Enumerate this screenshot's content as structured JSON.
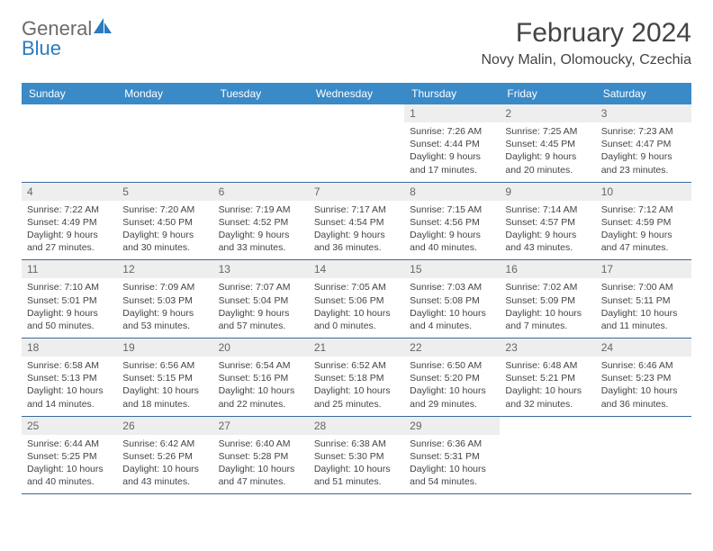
{
  "logo": {
    "word1": "General",
    "word2": "Blue"
  },
  "title": "February 2024",
  "location": "Novy Malin, Olomoucky, Czechia",
  "colors": {
    "header_bg": "#3a8ac8",
    "row_border": "#3a6a9a",
    "daynum_bg": "#eeeeee",
    "logo_gray": "#6b6b6b",
    "logo_blue": "#2b7bbf"
  },
  "weekdays": [
    "Sunday",
    "Monday",
    "Tuesday",
    "Wednesday",
    "Thursday",
    "Friday",
    "Saturday"
  ],
  "weeks": [
    [
      null,
      null,
      null,
      null,
      {
        "n": "1",
        "sr": "Sunrise: 7:26 AM",
        "ss": "Sunset: 4:44 PM",
        "dl": "Daylight: 9 hours and 17 minutes."
      },
      {
        "n": "2",
        "sr": "Sunrise: 7:25 AM",
        "ss": "Sunset: 4:45 PM",
        "dl": "Daylight: 9 hours and 20 minutes."
      },
      {
        "n": "3",
        "sr": "Sunrise: 7:23 AM",
        "ss": "Sunset: 4:47 PM",
        "dl": "Daylight: 9 hours and 23 minutes."
      }
    ],
    [
      {
        "n": "4",
        "sr": "Sunrise: 7:22 AM",
        "ss": "Sunset: 4:49 PM",
        "dl": "Daylight: 9 hours and 27 minutes."
      },
      {
        "n": "5",
        "sr": "Sunrise: 7:20 AM",
        "ss": "Sunset: 4:50 PM",
        "dl": "Daylight: 9 hours and 30 minutes."
      },
      {
        "n": "6",
        "sr": "Sunrise: 7:19 AM",
        "ss": "Sunset: 4:52 PM",
        "dl": "Daylight: 9 hours and 33 minutes."
      },
      {
        "n": "7",
        "sr": "Sunrise: 7:17 AM",
        "ss": "Sunset: 4:54 PM",
        "dl": "Daylight: 9 hours and 36 minutes."
      },
      {
        "n": "8",
        "sr": "Sunrise: 7:15 AM",
        "ss": "Sunset: 4:56 PM",
        "dl": "Daylight: 9 hours and 40 minutes."
      },
      {
        "n": "9",
        "sr": "Sunrise: 7:14 AM",
        "ss": "Sunset: 4:57 PM",
        "dl": "Daylight: 9 hours and 43 minutes."
      },
      {
        "n": "10",
        "sr": "Sunrise: 7:12 AM",
        "ss": "Sunset: 4:59 PM",
        "dl": "Daylight: 9 hours and 47 minutes."
      }
    ],
    [
      {
        "n": "11",
        "sr": "Sunrise: 7:10 AM",
        "ss": "Sunset: 5:01 PM",
        "dl": "Daylight: 9 hours and 50 minutes."
      },
      {
        "n": "12",
        "sr": "Sunrise: 7:09 AM",
        "ss": "Sunset: 5:03 PM",
        "dl": "Daylight: 9 hours and 53 minutes."
      },
      {
        "n": "13",
        "sr": "Sunrise: 7:07 AM",
        "ss": "Sunset: 5:04 PM",
        "dl": "Daylight: 9 hours and 57 minutes."
      },
      {
        "n": "14",
        "sr": "Sunrise: 7:05 AM",
        "ss": "Sunset: 5:06 PM",
        "dl": "Daylight: 10 hours and 0 minutes."
      },
      {
        "n": "15",
        "sr": "Sunrise: 7:03 AM",
        "ss": "Sunset: 5:08 PM",
        "dl": "Daylight: 10 hours and 4 minutes."
      },
      {
        "n": "16",
        "sr": "Sunrise: 7:02 AM",
        "ss": "Sunset: 5:09 PM",
        "dl": "Daylight: 10 hours and 7 minutes."
      },
      {
        "n": "17",
        "sr": "Sunrise: 7:00 AM",
        "ss": "Sunset: 5:11 PM",
        "dl": "Daylight: 10 hours and 11 minutes."
      }
    ],
    [
      {
        "n": "18",
        "sr": "Sunrise: 6:58 AM",
        "ss": "Sunset: 5:13 PM",
        "dl": "Daylight: 10 hours and 14 minutes."
      },
      {
        "n": "19",
        "sr": "Sunrise: 6:56 AM",
        "ss": "Sunset: 5:15 PM",
        "dl": "Daylight: 10 hours and 18 minutes."
      },
      {
        "n": "20",
        "sr": "Sunrise: 6:54 AM",
        "ss": "Sunset: 5:16 PM",
        "dl": "Daylight: 10 hours and 22 minutes."
      },
      {
        "n": "21",
        "sr": "Sunrise: 6:52 AM",
        "ss": "Sunset: 5:18 PM",
        "dl": "Daylight: 10 hours and 25 minutes."
      },
      {
        "n": "22",
        "sr": "Sunrise: 6:50 AM",
        "ss": "Sunset: 5:20 PM",
        "dl": "Daylight: 10 hours and 29 minutes."
      },
      {
        "n": "23",
        "sr": "Sunrise: 6:48 AM",
        "ss": "Sunset: 5:21 PM",
        "dl": "Daylight: 10 hours and 32 minutes."
      },
      {
        "n": "24",
        "sr": "Sunrise: 6:46 AM",
        "ss": "Sunset: 5:23 PM",
        "dl": "Daylight: 10 hours and 36 minutes."
      }
    ],
    [
      {
        "n": "25",
        "sr": "Sunrise: 6:44 AM",
        "ss": "Sunset: 5:25 PM",
        "dl": "Daylight: 10 hours and 40 minutes."
      },
      {
        "n": "26",
        "sr": "Sunrise: 6:42 AM",
        "ss": "Sunset: 5:26 PM",
        "dl": "Daylight: 10 hours and 43 minutes."
      },
      {
        "n": "27",
        "sr": "Sunrise: 6:40 AM",
        "ss": "Sunset: 5:28 PM",
        "dl": "Daylight: 10 hours and 47 minutes."
      },
      {
        "n": "28",
        "sr": "Sunrise: 6:38 AM",
        "ss": "Sunset: 5:30 PM",
        "dl": "Daylight: 10 hours and 51 minutes."
      },
      {
        "n": "29",
        "sr": "Sunrise: 6:36 AM",
        "ss": "Sunset: 5:31 PM",
        "dl": "Daylight: 10 hours and 54 minutes."
      },
      null,
      null
    ]
  ]
}
